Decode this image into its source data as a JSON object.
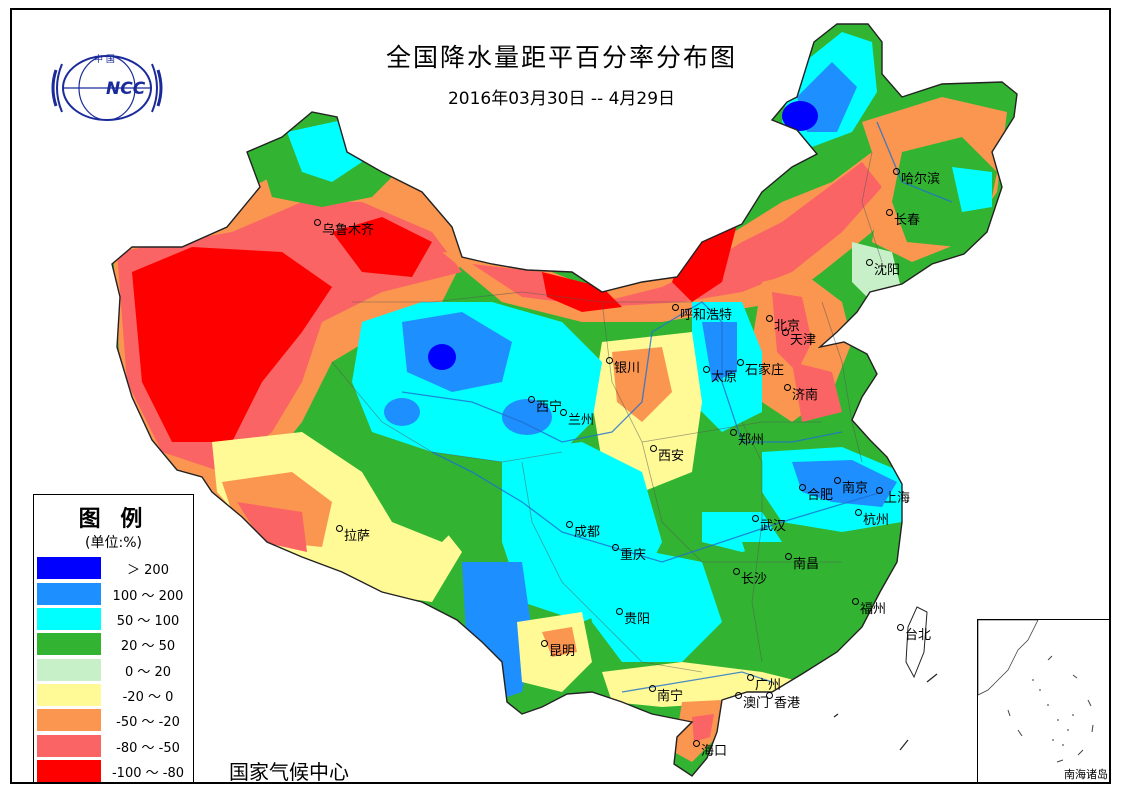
{
  "map": {
    "title": "全国降水量距平百分率分布图",
    "subtitle": "2016年03月30日 -- 4月29日",
    "organization": "国家气候中心",
    "inset_label": "南海诸岛",
    "logo": {
      "text_top": "中   国",
      "text_mark": "NCC",
      "icon": "ncc-globe-logo-icon"
    },
    "legend": {
      "title": "图 例",
      "unit": "(单位:%)",
      "items": [
        {
          "label": "＞ 200",
          "color": "#0000FF"
        },
        {
          "label": "100 ～ 200",
          "color": "#1E8FFF"
        },
        {
          "label": "50 ～ 100",
          "color": "#00FFFF"
        },
        {
          "label": "20 ～ 50",
          "color": "#32B432"
        },
        {
          "label": "0 ～ 20",
          "color": "#C8F0C8"
        },
        {
          "label": "-20 ～ 0",
          "color": "#FFFA96"
        },
        {
          "label": "-50 ～ -20",
          "color": "#FA9650"
        },
        {
          "label": "-80 ～ -50",
          "color": "#FA6464"
        },
        {
          "label": "-100 ～ -80",
          "color": "#FF0000"
        }
      ]
    },
    "cities": [
      {
        "name": "乌鲁木齐"
      },
      {
        "name": "呼和浩特"
      },
      {
        "name": "哈尔滨"
      },
      {
        "name": "长春"
      },
      {
        "name": "沈阳"
      },
      {
        "name": "北京"
      },
      {
        "name": "天津"
      },
      {
        "name": "银川"
      },
      {
        "name": "太原"
      },
      {
        "name": "石家庄"
      },
      {
        "name": "济南"
      },
      {
        "name": "西宁"
      },
      {
        "name": "兰州"
      },
      {
        "name": "西安"
      },
      {
        "name": "郑州"
      },
      {
        "name": "合肥"
      },
      {
        "name": "南京"
      },
      {
        "name": "上海"
      },
      {
        "name": "杭州"
      },
      {
        "name": "拉萨"
      },
      {
        "name": "成都"
      },
      {
        "name": "武汉"
      },
      {
        "name": "重庆"
      },
      {
        "name": "南昌"
      },
      {
        "name": "长沙"
      },
      {
        "name": "福州"
      },
      {
        "name": "贵阳"
      },
      {
        "name": "台北"
      },
      {
        "name": "昆明"
      },
      {
        "name": "南宁"
      },
      {
        "name": "广州"
      },
      {
        "name": "澳门"
      },
      {
        "name": "香港"
      },
      {
        "name": "海口"
      }
    ]
  }
}
